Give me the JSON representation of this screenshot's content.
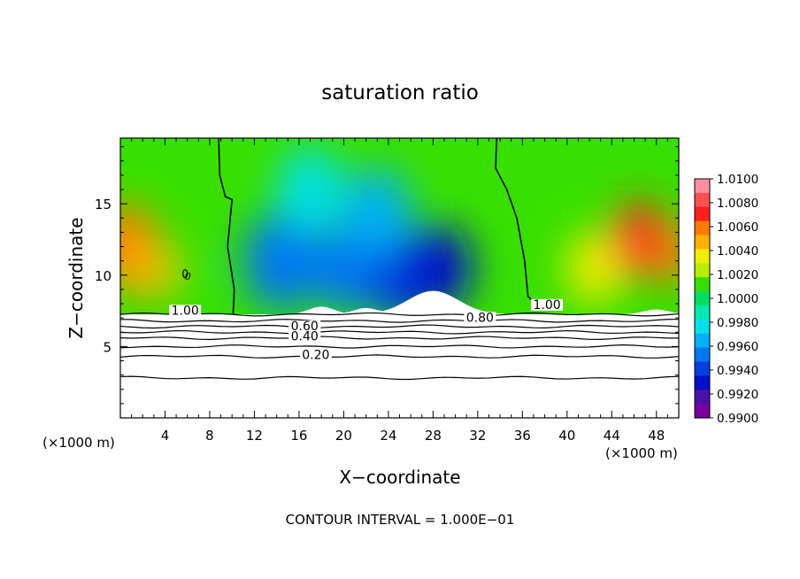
{
  "chart_data": {
    "type": "heatmap",
    "title": "saturation ratio",
    "xlabel": "X−coordinate",
    "ylabel": "Z−coordinate",
    "x_unit_left": "(×1000 m)",
    "x_unit_right": "(×1000 m)",
    "footer": "CONTOUR INTERVAL = 1.000E−01",
    "xlim": [
      0,
      50
    ],
    "ylim": [
      0,
      19.6
    ],
    "x_ticks": [
      4,
      8,
      12,
      16,
      20,
      24,
      28,
      32,
      36,
      40,
      44,
      48
    ],
    "y_ticks": [
      5,
      10,
      15
    ],
    "colorbar": {
      "labels": [
        "1.0100",
        "1.0080",
        "1.0060",
        "1.0040",
        "1.0020",
        "1.0000",
        "0.9980",
        "0.9960",
        "0.9940",
        "0.9920",
        "0.9900"
      ],
      "colors": [
        "#ff8fa0",
        "#ff5050",
        "#ff2020",
        "#ff7a00",
        "#ffb000",
        "#f0ee00",
        "#b8ee00",
        "#38e000",
        "#00e060",
        "#00e8b0",
        "#00e0e8",
        "#00b0f8",
        "#0078f0",
        "#0040e0",
        "#0010c8",
        "#4a10a8",
        "#7a00a0"
      ]
    },
    "contour_labels": [
      {
        "text": "1.00",
        "x": 5.8,
        "y": 7.3
      },
      {
        "text": "0.60",
        "x": 16.5,
        "y": 6.2
      },
      {
        "text": "0.40",
        "x": 16.5,
        "y": 5.5
      },
      {
        "text": "0.20",
        "x": 17.5,
        "y": 4.2
      },
      {
        "text": "0.80",
        "x": 32.2,
        "y": 6.8
      },
      {
        "text": "1.00",
        "x": 38.2,
        "y": 7.7
      },
      {
        "text": "0",
        "x": 5.8,
        "y": 10.0
      }
    ],
    "contour_levels_below_cloud": [
      7.25,
      6.8,
      6.4,
      6.0,
      5.6,
      5.0,
      4.3,
      2.8
    ],
    "heat_blobs": [
      {
        "x": 0.5,
        "y": 12.0,
        "r": 3.0,
        "v": 1.0065
      },
      {
        "x": 2.5,
        "y": 10.5,
        "r": 2.2,
        "v": 1.0055
      },
      {
        "x": 5.8,
        "y": 10.0,
        "r": 1.6,
        "v": 1.0012
      },
      {
        "x": 14.5,
        "y": 11.0,
        "r": 3.5,
        "v": 0.9954
      },
      {
        "x": 20.5,
        "y": 10.5,
        "r": 3.2,
        "v": 0.9946
      },
      {
        "x": 25.5,
        "y": 10.0,
        "r": 3.4,
        "v": 0.9935
      },
      {
        "x": 28.5,
        "y": 10.5,
        "r": 3.0,
        "v": 0.9925
      },
      {
        "x": 23.0,
        "y": 14.5,
        "r": 3.0,
        "v": 0.9966
      },
      {
        "x": 17.0,
        "y": 16.0,
        "r": 3.0,
        "v": 0.9974
      },
      {
        "x": 42.5,
        "y": 10.5,
        "r": 2.6,
        "v": 1.004
      },
      {
        "x": 46.5,
        "y": 12.5,
        "r": 2.6,
        "v": 1.007
      },
      {
        "x": 49.5,
        "y": 11.5,
        "r": 2.0,
        "v": 1.0066
      }
    ]
  }
}
